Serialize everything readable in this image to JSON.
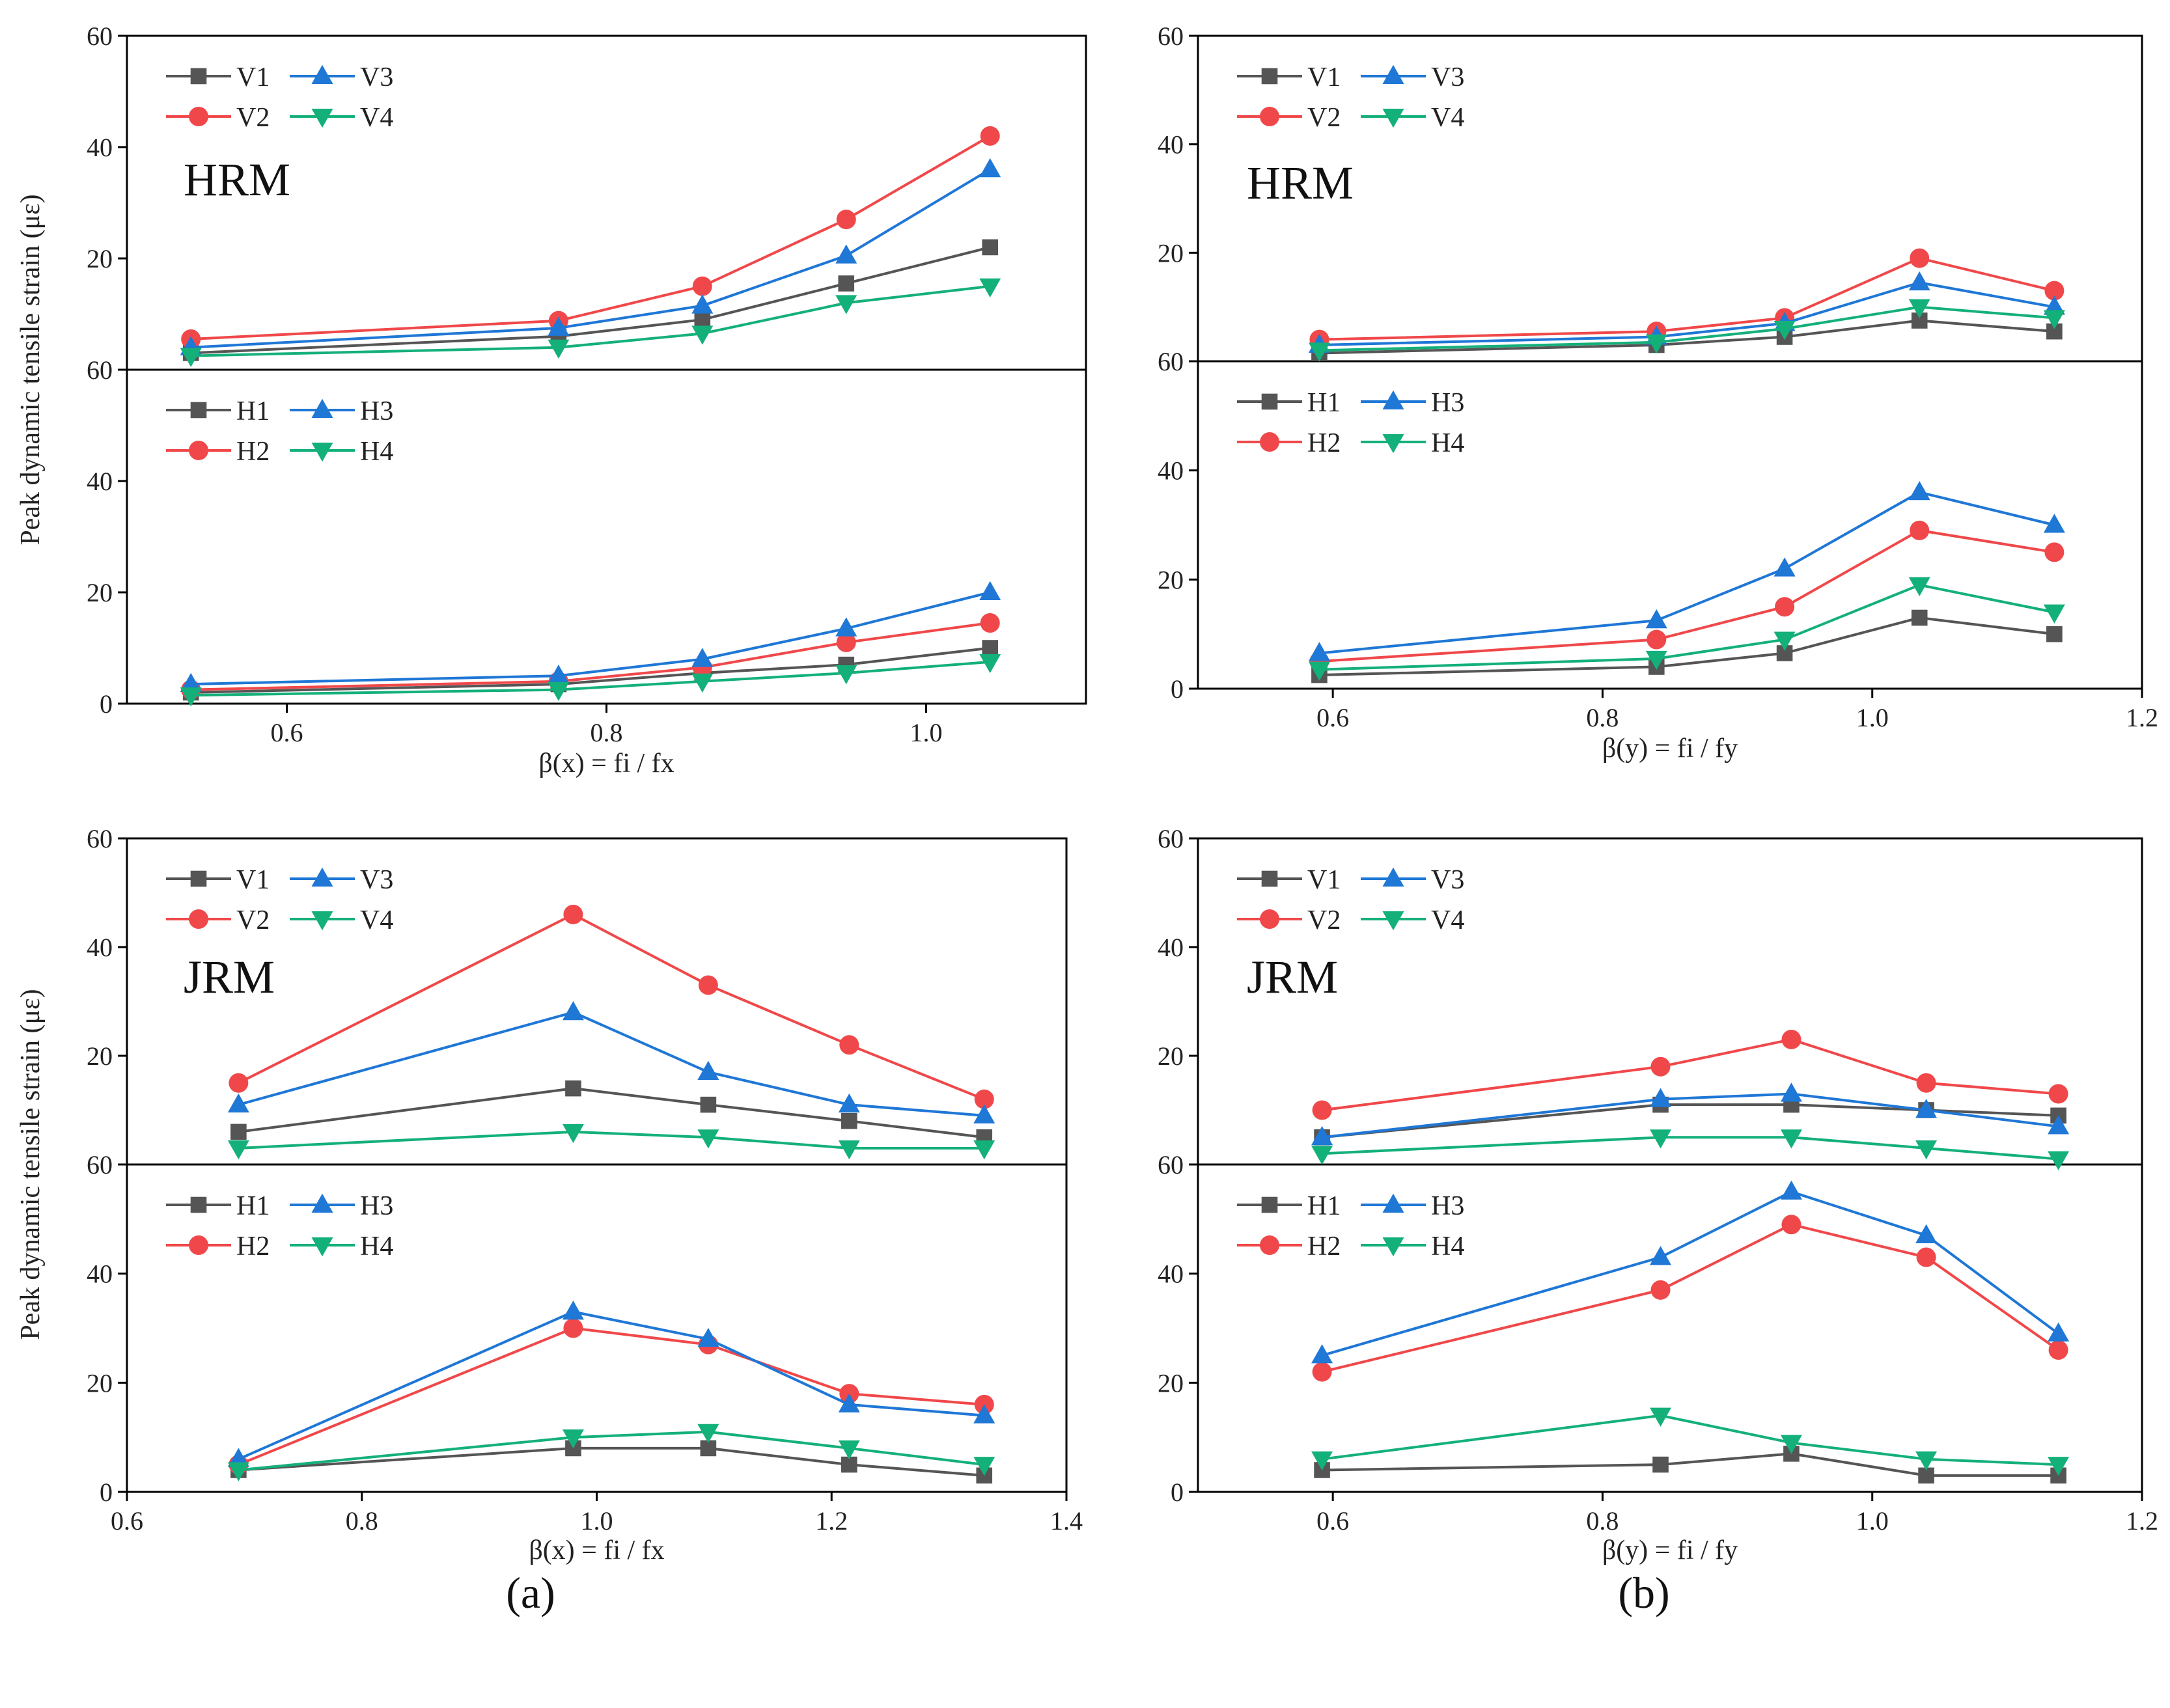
{
  "colors": {
    "V1": "#555555",
    "V2": "#f0484a",
    "V3": "#1f77d6",
    "V4": "#14b07a",
    "H1": "#555555",
    "H2": "#f0484a",
    "H3": "#1f77d6",
    "H4": "#14b07a"
  },
  "markers": {
    "V1": "square",
    "V2": "circle",
    "V3": "triangle-up",
    "V4": "triangle-down",
    "H1": "square",
    "H2": "circle",
    "H3": "triangle-up",
    "H4": "triangle-down"
  },
  "captions": [
    "(a)",
    "(b)"
  ],
  "chart_data": [
    {
      "type": "line",
      "group": "HRM",
      "col": 0,
      "title": "HRM",
      "xlabel": "β(x) = fi / fx",
      "ylabel": "Peak dynamic tensile strain (με)",
      "xlim": [
        0.5,
        1.1
      ],
      "xticks": [
        0.6,
        0.8,
        1.0
      ],
      "xtick_labels": [
        "0.6",
        "0.8",
        "1.0"
      ],
      "ylim": [
        0,
        60
      ],
      "yticks_top": [
        20,
        40,
        60
      ],
      "yticks_top_labels": [
        "20",
        "40",
        "60"
      ],
      "yticks_bottom": [
        0,
        20,
        40,
        60
      ],
      "yticks_bottom_labels": [
        "0",
        "20",
        "40",
        "60"
      ],
      "x": [
        0.54,
        0.77,
        0.86,
        0.95,
        1.04
      ],
      "panels": [
        {
          "legend": [
            "V1",
            "V3",
            "V2",
            "V4"
          ],
          "series": [
            {
              "name": "V1",
              "values": [
                3,
                6,
                9,
                15.5,
                22
              ]
            },
            {
              "name": "V2",
              "values": [
                5.5,
                8.8,
                15,
                27,
                42
              ]
            },
            {
              "name": "V3",
              "values": [
                4,
                7.5,
                11.5,
                20.5,
                36
              ]
            },
            {
              "name": "V4",
              "values": [
                2.5,
                4,
                6.5,
                12,
                15
              ]
            }
          ]
        },
        {
          "legend": [
            "H1",
            "H3",
            "H2",
            "H4"
          ],
          "series": [
            {
              "name": "H1",
              "values": [
                2,
                3.5,
                5.5,
                7,
                10
              ]
            },
            {
              "name": "H2",
              "values": [
                2.5,
                4,
                6.5,
                11,
                14.5
              ]
            },
            {
              "name": "H3",
              "values": [
                3.5,
                5,
                8,
                13.5,
                20
              ]
            },
            {
              "name": "H4",
              "values": [
                1.5,
                2.5,
                4,
                5.5,
                7.5
              ]
            }
          ]
        }
      ]
    },
    {
      "type": "line",
      "group": "HRM",
      "col": 1,
      "title": "HRM",
      "xlabel": "β(y) = fi / fy",
      "ylabel": "",
      "xlim": [
        0.5,
        1.2
      ],
      "xticks": [
        0.6,
        0.8,
        1.0,
        1.2
      ],
      "xtick_labels": [
        "0.6",
        "0.8",
        "1.0",
        "1.2"
      ],
      "ylim": [
        0,
        60
      ],
      "yticks_top": [
        20,
        40,
        60
      ],
      "yticks_top_labels": [
        "20",
        "40",
        "60"
      ],
      "yticks_bottom": [
        0,
        20,
        40,
        60
      ],
      "yticks_bottom_labels": [
        "0",
        "20",
        "40",
        "60"
      ],
      "x": [
        0.59,
        0.84,
        0.935,
        1.035,
        1.135
      ],
      "panels": [
        {
          "legend": [
            "V1",
            "V3",
            "V2",
            "V4"
          ],
          "series": [
            {
              "name": "V1",
              "values": [
                1.5,
                3,
                4.5,
                7.5,
                5.5
              ]
            },
            {
              "name": "V2",
              "values": [
                4,
                5.5,
                8,
                19,
                13
              ]
            },
            {
              "name": "V3",
              "values": [
                3,
                4.5,
                7,
                14.5,
                10
              ]
            },
            {
              "name": "V4",
              "values": [
                2,
                3.5,
                6,
                10,
                8
              ]
            }
          ]
        },
        {
          "legend": [
            "H1",
            "H3",
            "H2",
            "H4"
          ],
          "series": [
            {
              "name": "H1",
              "values": [
                2.5,
                4,
                6.5,
                13,
                10
              ]
            },
            {
              "name": "H2",
              "values": [
                5,
                9,
                15,
                29,
                25
              ]
            },
            {
              "name": "H3",
              "values": [
                6.5,
                12.5,
                22,
                36,
                30
              ]
            },
            {
              "name": "H4",
              "values": [
                3.5,
                5.5,
                9,
                19,
                14
              ]
            }
          ]
        }
      ]
    },
    {
      "type": "line",
      "group": "JRM",
      "col": 0,
      "title": "JRM",
      "xlabel": "β(x) = fi / fx",
      "ylabel": "Peak dynamic tensile strain (με)",
      "xlim": [
        0.6,
        1.4
      ],
      "xticks": [
        0.6,
        0.8,
        1.0,
        1.2,
        1.4
      ],
      "xtick_labels": [
        "0.6",
        "0.8",
        "1.0",
        "1.2",
        "1.4"
      ],
      "ylim": [
        0,
        60
      ],
      "yticks_top": [
        20,
        40,
        60
      ],
      "yticks_top_labels": [
        "20",
        "40",
        "60"
      ],
      "yticks_bottom": [
        0,
        20,
        40,
        60
      ],
      "yticks_bottom_labels": [
        "0",
        "20",
        "40",
        "60"
      ],
      "x": [
        0.695,
        0.98,
        1.095,
        1.215,
        1.33
      ],
      "panels": [
        {
          "legend": [
            "V1",
            "V3",
            "V2",
            "V4"
          ],
          "series": [
            {
              "name": "V1",
              "values": [
                6,
                14,
                11,
                8,
                5
              ]
            },
            {
              "name": "V2",
              "values": [
                15,
                46,
                33,
                22,
                12
              ]
            },
            {
              "name": "V3",
              "values": [
                11,
                28,
                17,
                11,
                9
              ]
            },
            {
              "name": "V4",
              "values": [
                3,
                6,
                5,
                3,
                3
              ]
            }
          ]
        },
        {
          "legend": [
            "H1",
            "H3",
            "H2",
            "H4"
          ],
          "series": [
            {
              "name": "H1",
              "values": [
                4,
                8,
                8,
                5,
                3
              ]
            },
            {
              "name": "H2",
              "values": [
                5,
                30,
                27,
                18,
                16
              ]
            },
            {
              "name": "H3",
              "values": [
                6,
                33,
                28,
                16,
                14
              ]
            },
            {
              "name": "H4",
              "values": [
                4,
                10,
                11,
                8,
                5
              ]
            }
          ]
        }
      ]
    },
    {
      "type": "line",
      "group": "JRM",
      "col": 1,
      "title": "JRM",
      "xlabel": "β(y) = fi / fy",
      "ylabel": "",
      "xlim": [
        0.5,
        1.2
      ],
      "xticks": [
        0.6,
        0.8,
        1.0,
        1.2
      ],
      "xtick_labels": [
        "0.6",
        "0.8",
        "1.0",
        "1.2"
      ],
      "ylim": [
        0,
        60
      ],
      "yticks_top": [
        20,
        40,
        60
      ],
      "yticks_top_labels": [
        "20",
        "40",
        "60"
      ],
      "yticks_bottom": [
        0,
        20,
        40,
        60
      ],
      "yticks_bottom_labels": [
        "0",
        "20",
        "40",
        "60"
      ],
      "x": [
        0.592,
        0.843,
        0.94,
        1.04,
        1.138
      ],
      "panels": [
        {
          "legend": [
            "V1",
            "V3",
            "V2",
            "V4"
          ],
          "series": [
            {
              "name": "V1",
              "values": [
                5,
                11,
                11,
                10,
                9
              ]
            },
            {
              "name": "V2",
              "values": [
                10,
                18,
                23,
                15,
                13
              ]
            },
            {
              "name": "V3",
              "values": [
                5,
                12,
                13,
                10,
                7
              ]
            },
            {
              "name": "V4",
              "values": [
                2,
                5,
                5,
                3,
                1
              ]
            }
          ]
        },
        {
          "legend": [
            "H1",
            "H3",
            "H2",
            "H4"
          ],
          "series": [
            {
              "name": "H1",
              "values": [
                4,
                5,
                7,
                3,
                3
              ]
            },
            {
              "name": "H2",
              "values": [
                22,
                37,
                49,
                43,
                26
              ]
            },
            {
              "name": "H3",
              "values": [
                25,
                43,
                55,
                47,
                29
              ]
            },
            {
              "name": "H4",
              "values": [
                6,
                14,
                9,
                6,
                5
              ]
            }
          ]
        }
      ]
    }
  ]
}
